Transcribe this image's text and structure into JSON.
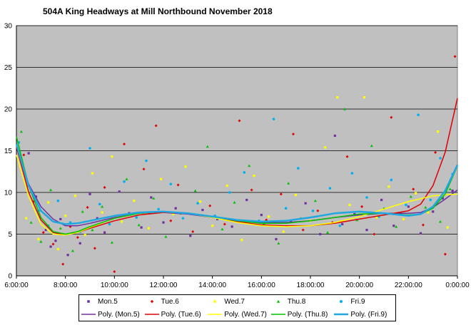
{
  "chart_data": {
    "type": "scatter",
    "title": "504A King Headways at Mill Northbound November 2018",
    "xlabel": "",
    "ylabel": "",
    "ylim": [
      0,
      30
    ],
    "yticks": [
      0,
      5,
      10,
      15,
      20,
      25,
      30
    ],
    "xlim_hours": [
      6,
      24
    ],
    "xtick_labels": [
      "6:00:00",
      "8:00:00",
      "10:00:00",
      "12:00:00",
      "14:00:00",
      "16:00:00",
      "18:00:00",
      "20:00:00",
      "22:00:00",
      "0:00:00"
    ],
    "grid": "horizontal",
    "background": "#c0c0c0",
    "legend_position": "bottom",
    "series": [
      {
        "name": "Mon.5",
        "color": "#7030a0",
        "marker": "square",
        "points": [
          [
            6.5,
            14.7
          ],
          [
            6.8,
            9.5
          ],
          [
            7.2,
            5.5
          ],
          [
            7.4,
            3.5
          ],
          [
            7.6,
            4.2
          ],
          [
            7.8,
            6.8
          ],
          [
            8.1,
            2.5
          ],
          [
            8.3,
            5.1
          ],
          [
            8.6,
            3.9
          ],
          [
            9.0,
            9.8
          ],
          [
            9.3,
            6.9
          ],
          [
            9.6,
            5.2
          ],
          [
            10.2,
            10.1
          ],
          [
            10.6,
            7.5
          ],
          [
            11.1,
            5.8
          ],
          [
            11.5,
            9.4
          ],
          [
            12.0,
            6.4
          ],
          [
            12.5,
            8.1
          ],
          [
            13.1,
            4.8
          ],
          [
            13.6,
            7.9
          ],
          [
            14.2,
            6.8
          ],
          [
            14.8,
            5.9
          ],
          [
            15.4,
            9.1
          ],
          [
            16.0,
            7.3
          ],
          [
            16.6,
            4.4
          ],
          [
            17.2,
            6.5
          ],
          [
            17.8,
            8.7
          ],
          [
            18.4,
            5.0
          ],
          [
            19.0,
            16.8
          ],
          [
            19.3,
            6.2
          ],
          [
            19.8,
            7.4
          ],
          [
            20.3,
            5.5
          ],
          [
            20.9,
            9.1
          ],
          [
            21.4,
            6.0
          ],
          [
            22.0,
            8.3
          ],
          [
            22.5,
            5.1
          ],
          [
            23.0,
            7.7
          ],
          [
            23.4,
            9.3
          ],
          [
            23.8,
            10.2
          ]
        ]
      },
      {
        "name": "Tue.6",
        "color": "#e00000",
        "marker": "diamond",
        "points": [
          [
            6.3,
            14.5
          ],
          [
            6.7,
            8.9
          ],
          [
            7.1,
            5.2
          ],
          [
            7.5,
            3.8
          ],
          [
            7.9,
            1.4
          ],
          [
            8.2,
            5.9
          ],
          [
            8.5,
            4.6
          ],
          [
            8.9,
            8.2
          ],
          [
            9.2,
            3.3
          ],
          [
            9.6,
            10.6
          ],
          [
            10.0,
            0.5
          ],
          [
            10.4,
            15.8
          ],
          [
            11.2,
            12.8
          ],
          [
            11.7,
            18.0
          ],
          [
            12.3,
            6.6
          ],
          [
            12.6,
            10.9
          ],
          [
            13.2,
            5.3
          ],
          [
            13.9,
            8.4
          ],
          [
            14.5,
            6.2
          ],
          [
            15.1,
            18.6
          ],
          [
            15.6,
            10.3
          ],
          [
            16.2,
            6.7
          ],
          [
            16.8,
            9.8
          ],
          [
            17.3,
            17.0
          ],
          [
            17.7,
            5.5
          ],
          [
            18.3,
            7.8
          ],
          [
            18.9,
            6.4
          ],
          [
            19.5,
            14.3
          ],
          [
            20.1,
            8.3
          ],
          [
            20.6,
            5.0
          ],
          [
            21.3,
            19.0
          ],
          [
            21.7,
            7.5
          ],
          [
            22.2,
            10.4
          ],
          [
            22.6,
            6.1
          ],
          [
            23.1,
            14.8
          ],
          [
            23.5,
            2.6
          ],
          [
            23.9,
            26.3
          ]
        ]
      },
      {
        "name": "Wed.7",
        "color": "#ffff00",
        "marker": "square",
        "points": [
          [
            6.4,
            6.9
          ],
          [
            6.9,
            4.4
          ],
          [
            7.3,
            8.8
          ],
          [
            7.7,
            3.2
          ],
          [
            8.0,
            7.2
          ],
          [
            8.4,
            9.6
          ],
          [
            8.8,
            4.9
          ],
          [
            9.1,
            12.3
          ],
          [
            9.5,
            7.6
          ],
          [
            9.9,
            14.3
          ],
          [
            10.3,
            6.5
          ],
          [
            10.8,
            9.0
          ],
          [
            11.4,
            5.7
          ],
          [
            11.9,
            11.6
          ],
          [
            12.4,
            7.4
          ],
          [
            12.9,
            13.1
          ],
          [
            13.5,
            8.9
          ],
          [
            14.0,
            6.0
          ],
          [
            14.6,
            10.8
          ],
          [
            15.2,
            4.3
          ],
          [
            15.7,
            12.0
          ],
          [
            16.3,
            7.1
          ],
          [
            16.9,
            5.3
          ],
          [
            17.4,
            9.7
          ],
          [
            18.0,
            6.6
          ],
          [
            18.6,
            15.4
          ],
          [
            19.1,
            21.4
          ],
          [
            19.6,
            8.5
          ],
          [
            20.2,
            21.4
          ],
          [
            20.7,
            7.0
          ],
          [
            21.2,
            10.7
          ],
          [
            21.8,
            6.8
          ],
          [
            22.3,
            9.9
          ],
          [
            22.8,
            7.6
          ],
          [
            23.2,
            17.3
          ],
          [
            23.6,
            5.8
          ]
        ]
      },
      {
        "name": "Thu.8",
        "color": "#00c000",
        "marker": "triangle",
        "points": [
          [
            6.2,
            17.3
          ],
          [
            6.6,
            6.4
          ],
          [
            7.0,
            4.1
          ],
          [
            7.4,
            10.3
          ],
          [
            7.8,
            5.7
          ],
          [
            8.3,
            3.0
          ],
          [
            8.7,
            7.7
          ],
          [
            9.1,
            5.5
          ],
          [
            9.5,
            8.3
          ],
          [
            9.9,
            4.0
          ],
          [
            10.5,
            11.6
          ],
          [
            11.0,
            6.1
          ],
          [
            11.6,
            9.3
          ],
          [
            12.1,
            4.7
          ],
          [
            12.7,
            7.5
          ],
          [
            13.3,
            10.2
          ],
          [
            13.8,
            15.5
          ],
          [
            14.4,
            5.6
          ],
          [
            14.9,
            8.8
          ],
          [
            15.5,
            13.2
          ],
          [
            16.1,
            6.3
          ],
          [
            16.7,
            3.9
          ],
          [
            17.1,
            11.1
          ],
          [
            17.6,
            6.9
          ],
          [
            18.2,
            9.0
          ],
          [
            18.7,
            5.2
          ],
          [
            19.4,
            20.0
          ],
          [
            19.9,
            6.7
          ],
          [
            20.5,
            15.6
          ],
          [
            21.0,
            8.1
          ],
          [
            21.5,
            5.9
          ],
          [
            22.1,
            9.5
          ],
          [
            22.7,
            8.2
          ],
          [
            23.3,
            6.5
          ],
          [
            23.7,
            10.4
          ]
        ]
      },
      {
        "name": "Fri.9",
        "color": "#00b0f0",
        "marker": "circle",
        "points": [
          [
            6.1,
            16.0
          ],
          [
            6.5,
            10.8
          ],
          [
            6.9,
            7.8
          ],
          [
            7.3,
            6.0
          ],
          [
            7.7,
            9.0
          ],
          [
            8.2,
            6.4
          ],
          [
            8.6,
            5.3
          ],
          [
            9.0,
            15.3
          ],
          [
            9.4,
            8.6
          ],
          [
            9.8,
            6.2
          ],
          [
            10.4,
            11.3
          ],
          [
            10.9,
            7.0
          ],
          [
            11.3,
            13.8
          ],
          [
            11.8,
            8.0
          ],
          [
            12.3,
            11.0
          ],
          [
            12.8,
            6.9
          ],
          [
            13.4,
            8.7
          ],
          [
            14.1,
            7.2
          ],
          [
            14.7,
            10.0
          ],
          [
            15.3,
            12.4
          ],
          [
            15.9,
            6.6
          ],
          [
            16.5,
            18.8
          ],
          [
            17.0,
            8.1
          ],
          [
            17.5,
            12.9
          ],
          [
            18.1,
            7.8
          ],
          [
            18.8,
            10.5
          ],
          [
            19.2,
            6.0
          ],
          [
            19.7,
            12.3
          ],
          [
            20.3,
            9.4
          ],
          [
            20.8,
            7.1
          ],
          [
            21.3,
            11.5
          ],
          [
            21.9,
            8.5
          ],
          [
            22.4,
            19.3
          ],
          [
            22.9,
            9.1
          ],
          [
            23.3,
            14.1
          ],
          [
            23.8,
            12.2
          ]
        ]
      }
    ],
    "trendlines": [
      {
        "name": "Poly. (Mon.5)",
        "color": "#7030a0",
        "width": 1.5,
        "points": [
          [
            6,
            15.5
          ],
          [
            6.5,
            11.0
          ],
          [
            7,
            8.3
          ],
          [
            7.5,
            6.8
          ],
          [
            8,
            6.0
          ],
          [
            8.5,
            6.0
          ],
          [
            9,
            6.3
          ],
          [
            10,
            7.0
          ],
          [
            11,
            7.5
          ],
          [
            12,
            7.6
          ],
          [
            13,
            7.4
          ],
          [
            14,
            7.0
          ],
          [
            15,
            6.6
          ],
          [
            16,
            6.4
          ],
          [
            17,
            6.4
          ],
          [
            18,
            6.6
          ],
          [
            19,
            7.0
          ],
          [
            20,
            7.3
          ],
          [
            21,
            7.5
          ],
          [
            22,
            7.5
          ],
          [
            22.5,
            7.6
          ],
          [
            23,
            8.2
          ],
          [
            23.5,
            9.2
          ],
          [
            24,
            10.3
          ]
        ]
      },
      {
        "name": "Poly. (Tue.6)",
        "color": "#e00000",
        "width": 1.5,
        "points": [
          [
            6,
            15.5
          ],
          [
            6.5,
            10.0
          ],
          [
            7,
            6.7
          ],
          [
            7.5,
            5.2
          ],
          [
            8,
            4.9
          ],
          [
            8.5,
            5.2
          ],
          [
            9,
            5.7
          ],
          [
            10,
            6.6
          ],
          [
            11,
            7.3
          ],
          [
            12,
            7.6
          ],
          [
            13,
            7.5
          ],
          [
            14,
            7.0
          ],
          [
            15,
            6.5
          ],
          [
            16,
            6.1
          ],
          [
            17,
            6.0
          ],
          [
            18,
            6.0
          ],
          [
            19,
            6.3
          ],
          [
            20,
            6.8
          ],
          [
            21,
            7.3
          ],
          [
            22,
            7.8
          ],
          [
            22.5,
            8.6
          ],
          [
            23,
            10.8
          ],
          [
            23.5,
            14.8
          ],
          [
            24,
            21.3
          ]
        ]
      },
      {
        "name": "Poly. (Wed.7)",
        "color": "#ffff00",
        "width": 1.5,
        "points": [
          [
            6,
            14.5
          ],
          [
            6.5,
            9.5
          ],
          [
            7,
            6.2
          ],
          [
            7.5,
            5.0
          ],
          [
            8,
            4.9
          ],
          [
            8.5,
            5.2
          ],
          [
            9,
            5.8
          ],
          [
            10,
            6.9
          ],
          [
            11,
            7.5
          ],
          [
            12,
            7.7
          ],
          [
            13,
            7.5
          ],
          [
            14,
            7.0
          ],
          [
            15,
            6.4
          ],
          [
            16,
            6.0
          ],
          [
            17,
            5.9
          ],
          [
            18,
            6.0
          ],
          [
            19,
            6.4
          ],
          [
            20,
            7.1
          ],
          [
            21,
            8.0
          ],
          [
            22,
            8.9
          ],
          [
            23,
            9.6
          ],
          [
            24,
            9.8
          ]
        ]
      },
      {
        "name": "Poly. (Thu.8)",
        "color": "#00c000",
        "width": 1.5,
        "points": [
          [
            6,
            16.7
          ],
          [
            6.5,
            10.8
          ],
          [
            7,
            7.0
          ],
          [
            7.5,
            5.3
          ],
          [
            8,
            5.0
          ],
          [
            8.5,
            5.3
          ],
          [
            9,
            5.9
          ],
          [
            10,
            6.9
          ],
          [
            11,
            7.5
          ],
          [
            12,
            7.7
          ],
          [
            13,
            7.5
          ],
          [
            14,
            7.1
          ],
          [
            15,
            6.6
          ],
          [
            16,
            6.3
          ],
          [
            17,
            6.3
          ],
          [
            18,
            6.6
          ],
          [
            19,
            7.0
          ],
          [
            20,
            7.4
          ],
          [
            21,
            7.5
          ],
          [
            22,
            7.3
          ],
          [
            22.5,
            7.4
          ],
          [
            23,
            8.1
          ],
          [
            23.5,
            9.8
          ],
          [
            24,
            13.2
          ]
        ]
      },
      {
        "name": "Poly. (Fri.9)",
        "color": "#1ea7e0",
        "width": 2.5,
        "points": [
          [
            6,
            15.8
          ],
          [
            6.5,
            10.8
          ],
          [
            7,
            7.8
          ],
          [
            7.5,
            6.5
          ],
          [
            8,
            6.2
          ],
          [
            8.5,
            6.3
          ],
          [
            9,
            6.6
          ],
          [
            10,
            7.2
          ],
          [
            11,
            7.6
          ],
          [
            12,
            7.7
          ],
          [
            13,
            7.5
          ],
          [
            14,
            7.1
          ],
          [
            15,
            6.7
          ],
          [
            16,
            6.5
          ],
          [
            17,
            6.6
          ],
          [
            18,
            7.0
          ],
          [
            19,
            7.5
          ],
          [
            20,
            7.7
          ],
          [
            21,
            7.5
          ],
          [
            22,
            7.2
          ],
          [
            22.5,
            7.4
          ],
          [
            23,
            8.3
          ],
          [
            23.5,
            10.2
          ],
          [
            24,
            13.3
          ]
        ]
      }
    ]
  }
}
